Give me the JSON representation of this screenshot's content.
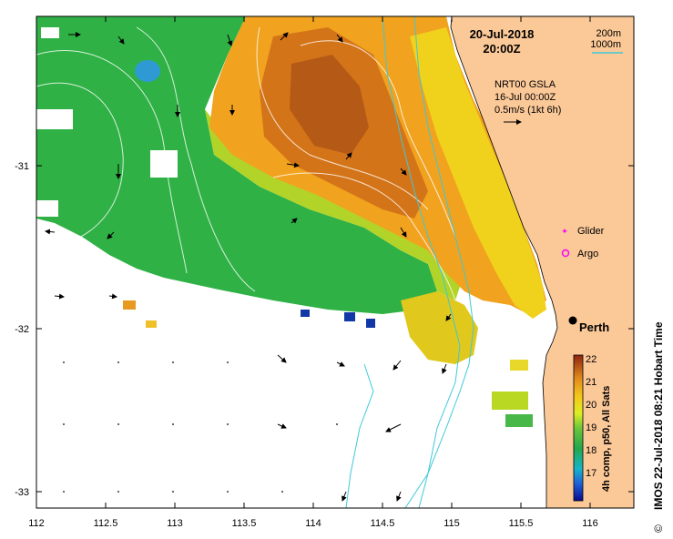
{
  "map": {
    "date": "20-Jul-2018",
    "time": "20:00Z",
    "depth_legend": {
      "c200": "200m",
      "c1000": "1000m"
    },
    "gsla": {
      "label": "NRT00 GSLA",
      "date": "16-Jul 00:00Z",
      "scale": "0.5m/s (1kt 6h)"
    },
    "symbols": {
      "glider": "Glider",
      "argo": "Argo"
    },
    "place": "Perth",
    "lat_ticks": [
      "-31",
      "-32",
      "-33"
    ],
    "lon_ticks": [
      "112",
      "112.5",
      "113",
      "113.5",
      "114",
      "114.5",
      "115",
      "115.5",
      "116"
    ],
    "colorbar": {
      "ticks": [
        "22",
        "21",
        "20",
        "19",
        "18",
        "17"
      ],
      "label": "4h comp, p50, All Sats"
    },
    "credit": "IMOS 22-Jul-2018 08:21 Hobart Time",
    "copyright": "©",
    "colors": {
      "land": "#fbc898",
      "contour": "#3ec9d8",
      "perth_dot": "#000000",
      "glider": "#ff00ff"
    }
  }
}
